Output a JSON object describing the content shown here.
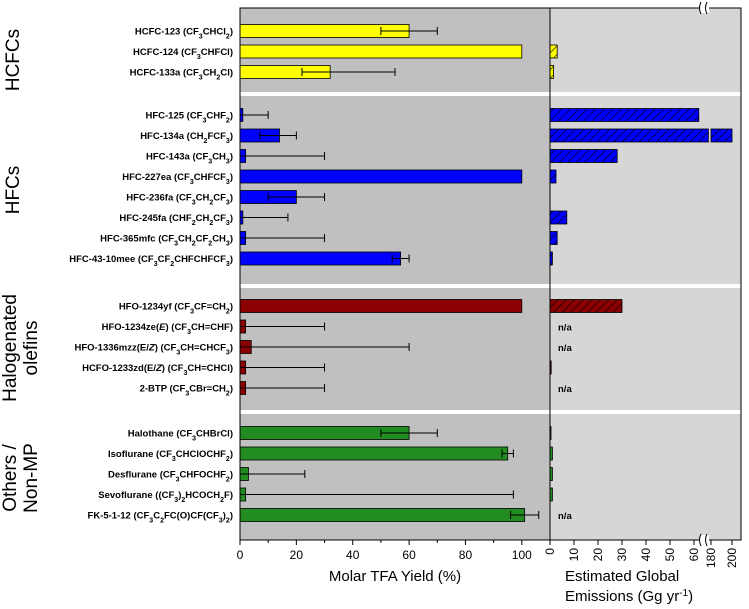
{
  "chart_data": [
    {
      "type": "bar",
      "orientation": "horizontal",
      "xlabel": "Molar TFA Yield (%)",
      "xlim": [
        0,
        110
      ],
      "xticks": [
        "0",
        "20",
        "40",
        "60",
        "80",
        "100"
      ],
      "groups": [
        {
          "name": "HCFCs",
          "color": "#ffff00",
          "items": [
            {
              "label": "HCFC-123 (CF3CHCl2)",
              "value": 60,
              "err_low": 50,
              "err_high": 70
            },
            {
              "label": "HCFC-124 (CF3CHFCl)",
              "value": 100
            },
            {
              "label": "HCFC-133a (CF3CH2Cl)",
              "value": 32,
              "err_low": 22,
              "err_high": 55
            }
          ]
        },
        {
          "name": "HFCs",
          "color": "#0000ff",
          "items": [
            {
              "label": "HFC-125 (CF3CHF2)",
              "value": 1,
              "err_low": 0,
              "err_high": 10
            },
            {
              "label": "HFC-134a (CH2FCF3)",
              "value": 14,
              "err_low": 7,
              "err_high": 20
            },
            {
              "label": "HFC-143a (CF3CH3)",
              "value": 2,
              "err_low": 0,
              "err_high": 30
            },
            {
              "label": "HFC-227ea (CF3CHFCF3)",
              "value": 100
            },
            {
              "label": "HFC-236fa (CF3CH2CF3)",
              "value": 20,
              "err_low": 10,
              "err_high": 30
            },
            {
              "label": "HFC-245fa (CHF2CH2CF3)",
              "value": 1,
              "err_low": 0,
              "err_high": 17
            },
            {
              "label": "HFC-365mfc (CF3CH2CF2CH3)",
              "value": 2,
              "err_low": 0,
              "err_high": 30
            },
            {
              "label": "HFC-43-10mee (CF3CF2CHFCHFCF3)",
              "value": 57,
              "err_low": 54,
              "err_high": 60
            }
          ]
        },
        {
          "name": "Halogenated olefins",
          "color": "#8b0000",
          "items": [
            {
              "label": "HFO-1234yf (CF3CF=CH2)",
              "value": 100
            },
            {
              "label": "HFO-1234ze(E) (CF3CH=CHF)",
              "value": 2,
              "err_low": 0,
              "err_high": 30
            },
            {
              "label": "HFO-1336mzz(E/Z) (CF3CH=CHCF3)",
              "value": 4,
              "err_low": 0,
              "err_high": 60
            },
            {
              "label": "HCFO-1233zd(E/Z) (CF3CH=CHCl)",
              "value": 2,
              "err_low": 0,
              "err_high": 30
            },
            {
              "label": "2-BTP (CF3CBr=CH2)",
              "value": 2,
              "err_low": 0,
              "err_high": 30
            }
          ]
        },
        {
          "name": "Others / Non-MP",
          "color": "#228b22",
          "items": [
            {
              "label": "Halothane (CF3CHBrCl)",
              "value": 60,
              "err_low": 50,
              "err_high": 70
            },
            {
              "label": "Isoflurane (CF3CHClOCHF2)",
              "value": 95,
              "err_low": 93,
              "err_high": 97
            },
            {
              "label": "Desflurane (CF3CHFOCHF2)",
              "value": 3,
              "err_low": 0,
              "err_high": 23
            },
            {
              "label": "Sevoflurane ((CF3)2HCOCH2F)",
              "value": 2,
              "err_low": 0,
              "err_high": 97
            },
            {
              "label": "FK-5-1-12 (CF3C2FC(O)CF(CF3)2)",
              "value": 101,
              "err_low": 96,
              "err_high": 106
            }
          ]
        }
      ]
    },
    {
      "type": "bar",
      "orientation": "horizontal",
      "xlabel": "Estimated Global Emissions (Gg yr-1)",
      "xticks_low": [
        "0",
        "10",
        "20",
        "30",
        "40",
        "50",
        "60"
      ],
      "xticks_high": [
        "180",
        "200"
      ],
      "axis_break": [
        70,
        170
      ],
      "na_label": "n/a",
      "values": [
        {
          "label": "HCFC-123",
          "value": null
        },
        {
          "label": "HCFC-124",
          "value": 3
        },
        {
          "label": "HCFC-133a",
          "value": 1.5
        },
        {
          "label": "HFC-125",
          "value": 62
        },
        {
          "label": "HFC-134a",
          "value": 200
        },
        {
          "label": "HFC-143a",
          "value": 28
        },
        {
          "label": "HFC-227ea",
          "value": 2.5
        },
        {
          "label": "HFC-236fa",
          "value": null
        },
        {
          "label": "HFC-245fa",
          "value": 7
        },
        {
          "label": "HFC-365mfc",
          "value": 3
        },
        {
          "label": "HFC-43-10mee",
          "value": 1
        },
        {
          "label": "HFO-1234yf",
          "value": 30
        },
        {
          "label": "HFO-1234ze(E)",
          "value": "n/a"
        },
        {
          "label": "HFO-1336mzz(E/Z)",
          "value": "n/a"
        },
        {
          "label": "HCFO-1233zd(E/Z)",
          "value": 0.5
        },
        {
          "label": "2-BTP",
          "value": "n/a"
        },
        {
          "label": "Halothane",
          "value": 0.3
        },
        {
          "label": "Isoflurane",
          "value": 1
        },
        {
          "label": "Desflurane",
          "value": 1
        },
        {
          "label": "Sevoflurane",
          "value": 1
        },
        {
          "label": "FK-5-1-12",
          "value": "n/a"
        }
      ]
    }
  ]
}
